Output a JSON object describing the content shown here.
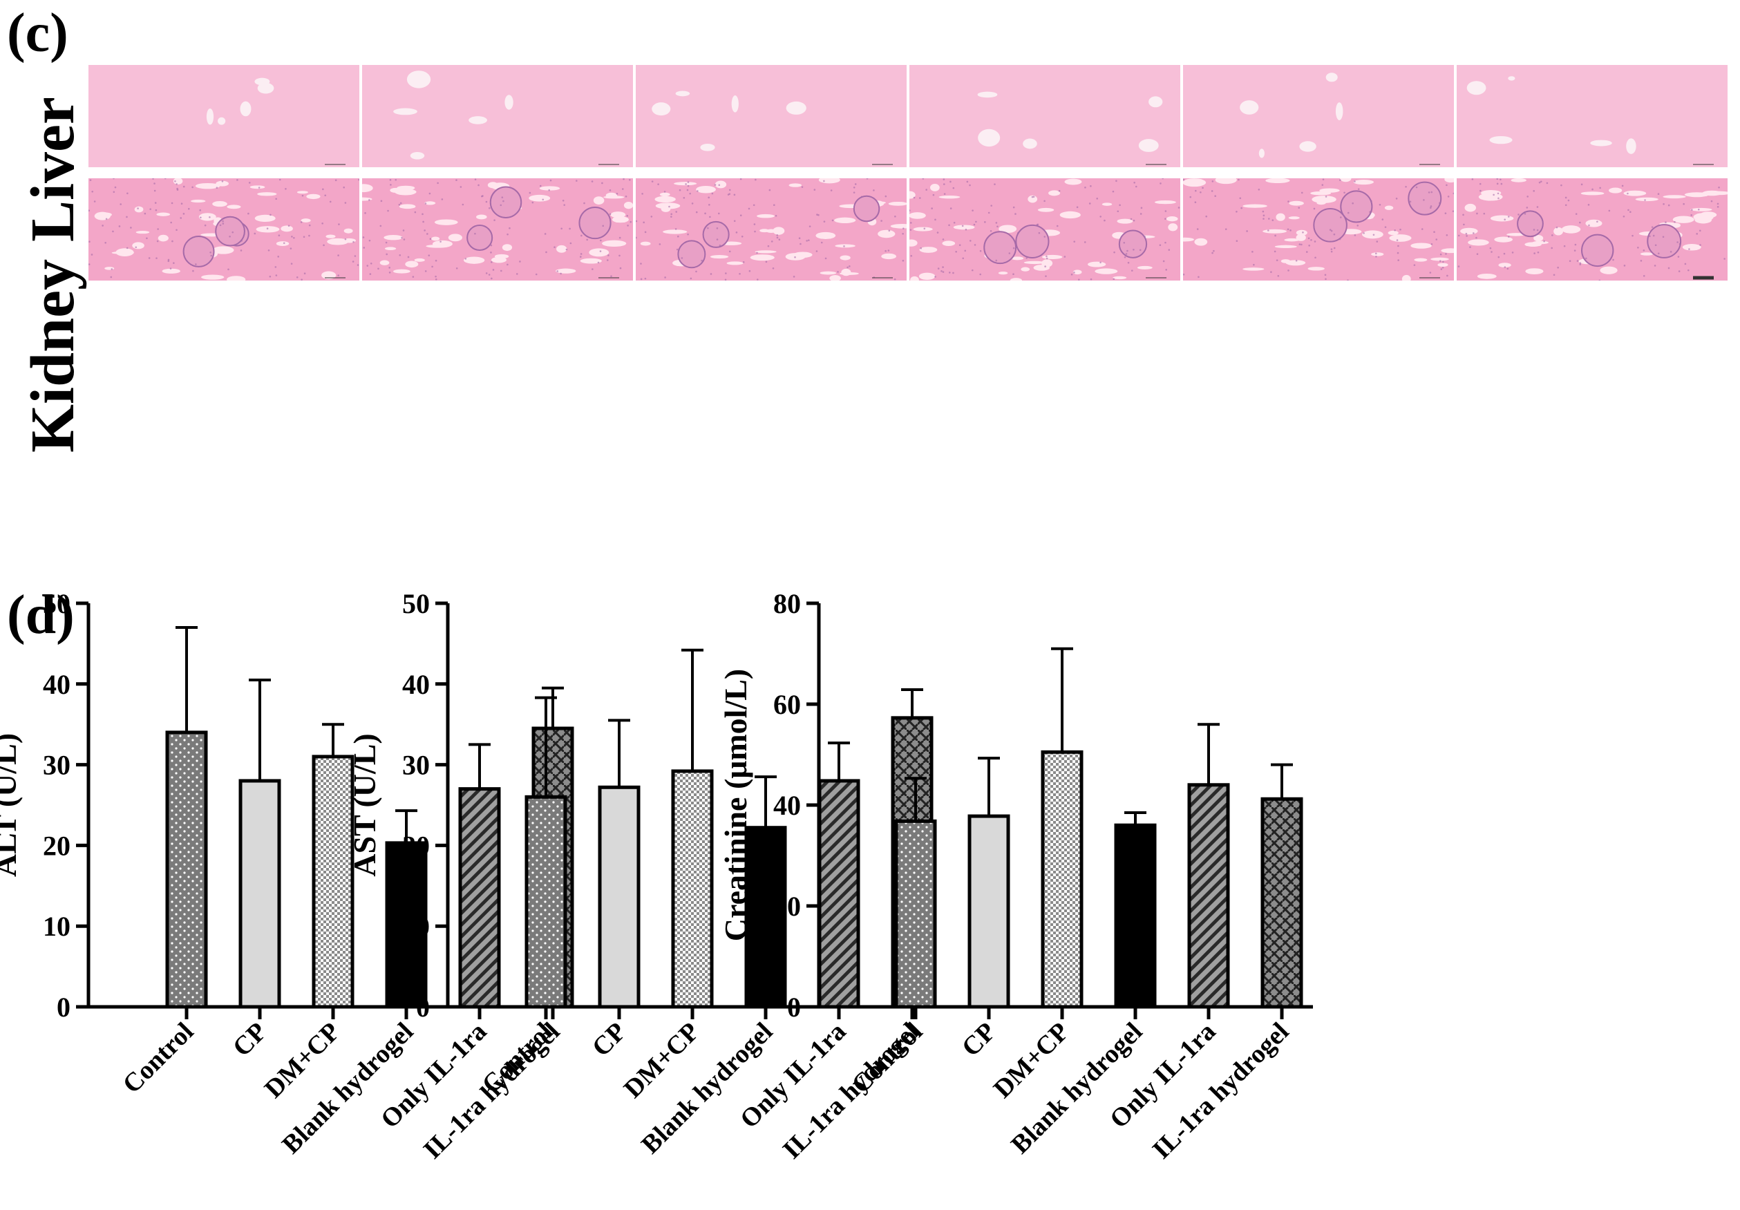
{
  "panel_c": {
    "label": "(c)",
    "rows": [
      {
        "label": "Liver",
        "tile_count": 6,
        "tissue": "liver"
      },
      {
        "label": "Kidney",
        "tile_count": 6,
        "tissue": "kidney"
      }
    ],
    "colors": {
      "stain": "#f3a6c8",
      "stain_light": "#f7bfd8",
      "vessel": "#fbeef3",
      "nuclei": "#a66aa8",
      "tubule": "#ffe6ee"
    }
  },
  "panel_d": {
    "label": "(d)"
  },
  "chart_data": [
    {
      "type": "bar",
      "categories": [
        "Control",
        "CP",
        "DM+CP",
        "Blank hydrogel",
        "Only IL-1ra",
        "IL-1ra hydrogel"
      ],
      "values": [
        34,
        28,
        31,
        20.3,
        27,
        34.5
      ],
      "errors": [
        13,
        12.5,
        4,
        4,
        5.5,
        5
      ],
      "ylabel": "ALT (U/L)",
      "ylim": [
        0,
        50
      ],
      "yticks": [
        "0",
        "10",
        "20",
        "30",
        "40",
        "50"
      ],
      "grid": false
    },
    {
      "type": "bar",
      "categories": [
        "Control",
        "CP",
        "DM+CP",
        "Blank hydrogel",
        "Only IL-1ra",
        "IL-1ra hydrogel"
      ],
      "values": [
        26,
        27.2,
        29.2,
        22.2,
        28,
        35.8
      ],
      "errors": [
        12.3,
        8.3,
        15,
        6.3,
        4.7,
        3.5
      ],
      "ylabel": "AST (U/L)",
      "ylim": [
        0,
        50
      ],
      "yticks": [
        "0",
        "10",
        "20",
        "30",
        "40",
        "50"
      ],
      "grid": false
    },
    {
      "type": "bar",
      "categories": [
        "Control",
        "CP",
        "DM+CP",
        "Blank hydrogel",
        "Only IL-1ra",
        "IL-1ra hydrogel"
      ],
      "values": [
        36.8,
        37.8,
        50.5,
        36,
        44,
        41.2
      ],
      "errors": [
        8.5,
        11.5,
        20.5,
        2.5,
        12,
        6.8
      ],
      "ylabel": "Creatinine (μmol/L)",
      "ylim": [
        0,
        80
      ],
      "yticks": [
        "0",
        "20",
        "40",
        "60",
        "80"
      ],
      "grid": false
    }
  ],
  "bar_styles": [
    {
      "fill": "#7a7a7a",
      "pattern": "dots"
    },
    {
      "fill": "#d9d9d9",
      "pattern": "none"
    },
    {
      "fill": "#bdbdbd",
      "pattern": "check"
    },
    {
      "fill": "#000000",
      "pattern": "none"
    },
    {
      "fill": "#9a9a9a",
      "pattern": "diagonal"
    },
    {
      "fill": "#6e6e6e",
      "pattern": "weave"
    }
  ]
}
